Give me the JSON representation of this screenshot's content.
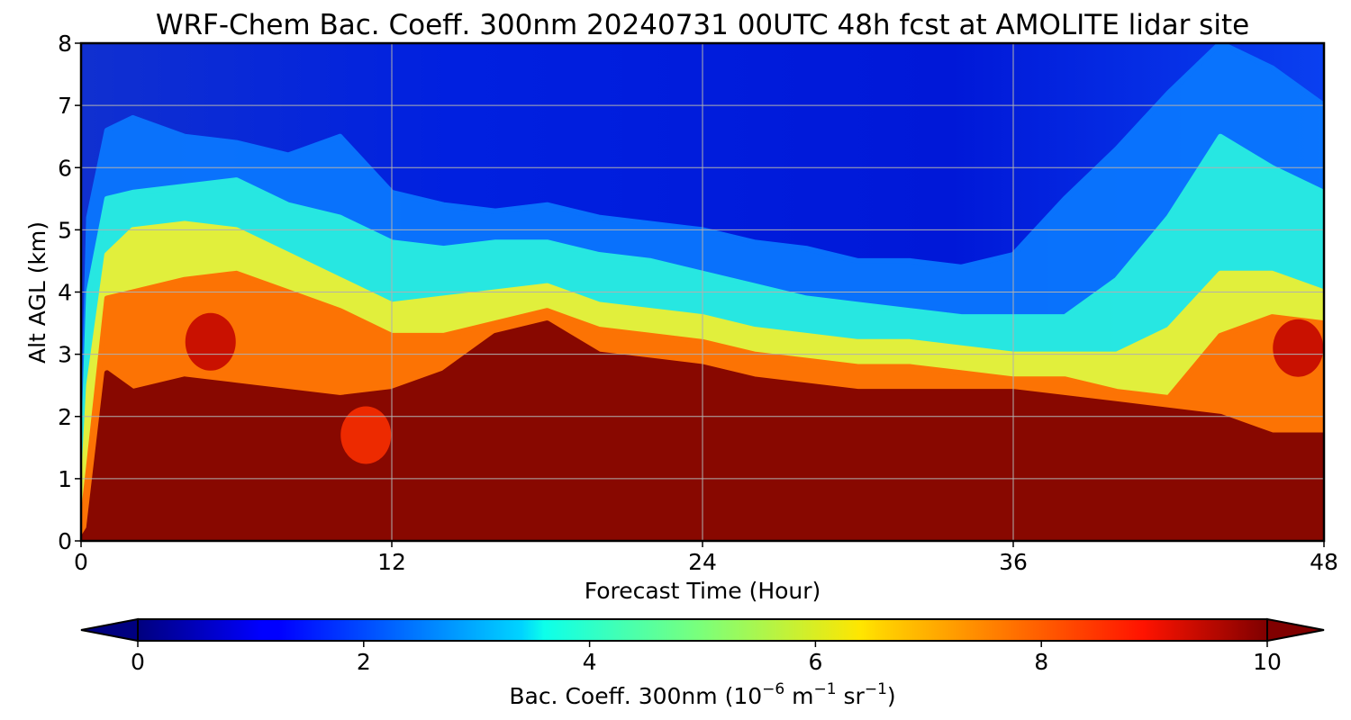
{
  "chart_data": {
    "type": "heatmap",
    "title": "WRF-Chem Bac. Coeff. 300nm  20240731 00UTC 48h fcst at AMOLITE lidar site",
    "xlabel": "Forecast Time (Hour)",
    "ylabel": "Alt AGL (km)",
    "xlim": [
      0,
      48
    ],
    "ylim": [
      0,
      8
    ],
    "xticks": [
      0,
      12,
      24,
      36,
      48
    ],
    "yticks": [
      0,
      1,
      2,
      3,
      4,
      5,
      6,
      7,
      8
    ],
    "grid": true,
    "colormap": "jet",
    "colorbar": {
      "label_prefix": "Bac. Coeff. 300nm  (10",
      "exp1": "−6",
      "label_mid": " m",
      "exp2": "−1",
      "label_mid2": " sr",
      "exp3": "−1",
      "label_suffix": ")",
      "range": [
        0,
        10
      ],
      "ticks": [
        0,
        2,
        4,
        6,
        8,
        10
      ],
      "orientation": "horizontal",
      "extend": "both"
    },
    "x": [
      0,
      0.3,
      1,
      2,
      4,
      6,
      8,
      10,
      12,
      14,
      16,
      18,
      20,
      22,
      24,
      26,
      28,
      30,
      32,
      34,
      36,
      38,
      40,
      42,
      44,
      46,
      48
    ],
    "layers": {
      "top_of_saturated_km": [
        0,
        0.2,
        2.7,
        2.4,
        2.6,
        2.5,
        2.4,
        2.3,
        2.4,
        2.7,
        3.3,
        3.5,
        3.0,
        2.9,
        2.8,
        2.6,
        2.5,
        2.4,
        2.4,
        2.4,
        2.4,
        2.3,
        2.2,
        2.1,
        2.0,
        1.7,
        1.7
      ],
      "orange_top_km": [
        0.1,
        1.2,
        3.9,
        4.0,
        4.2,
        4.3,
        4.0,
        3.7,
        3.3,
        3.3,
        3.5,
        3.7,
        3.4,
        3.3,
        3.2,
        3.0,
        2.9,
        2.8,
        2.8,
        2.7,
        2.6,
        2.6,
        2.4,
        2.3,
        3.3,
        3.6,
        3.5
      ],
      "yellow_top_km": [
        0.2,
        2.5,
        4.6,
        5.0,
        5.1,
        5.0,
        4.6,
        4.2,
        3.8,
        3.9,
        4.0,
        4.1,
        3.8,
        3.7,
        3.6,
        3.4,
        3.3,
        3.2,
        3.2,
        3.1,
        3.0,
        3.0,
        3.0,
        3.4,
        4.3,
        4.3,
        4.0
      ],
      "cyan_top_km": [
        0.3,
        4.0,
        5.5,
        5.6,
        5.7,
        5.8,
        5.4,
        5.2,
        4.8,
        4.7,
        4.8,
        4.8,
        4.6,
        4.5,
        4.3,
        4.1,
        3.9,
        3.8,
        3.7,
        3.6,
        3.6,
        3.6,
        4.2,
        5.2,
        6.5,
        6.0,
        5.6
      ],
      "lightblue_top_km": [
        0.5,
        5.2,
        6.6,
        6.8,
        6.5,
        6.4,
        6.2,
        6.5,
        5.6,
        5.4,
        5.3,
        5.4,
        5.2,
        5.1,
        5.0,
        4.8,
        4.7,
        4.5,
        4.5,
        4.4,
        4.6,
        5.5,
        6.3,
        7.2,
        8.0,
        7.6,
        7.0
      ]
    },
    "local_maxima": [
      {
        "x": 5.0,
        "y": 3.2,
        "value": 9.5
      },
      {
        "x": 11.0,
        "y": 1.7,
        "value": 8.5
      },
      {
        "x": 47.0,
        "y": 3.1,
        "value": 9.5
      }
    ]
  }
}
